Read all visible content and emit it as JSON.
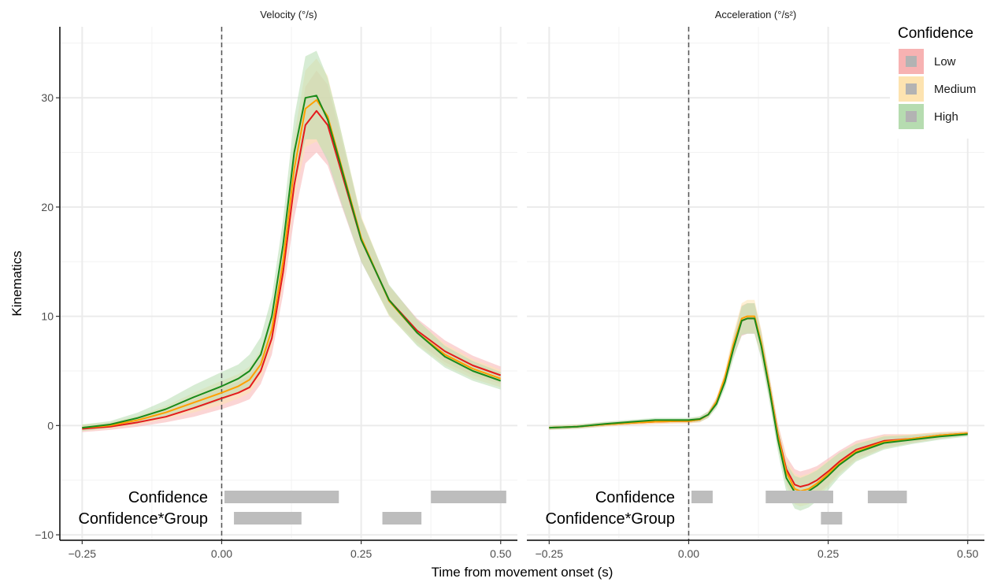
{
  "chart_data": {
    "type": "line",
    "xlabel": "Time from movement onset (s)",
    "ylabel": "Kinematics",
    "legend": {
      "title": "Confidence",
      "placement": "top-right",
      "entries": [
        {
          "name": "Low",
          "color": "#e41a1c",
          "fill": "#f7b2b2"
        },
        {
          "name": "Medium",
          "color": "#ff9f00",
          "fill": "#fde3b0"
        },
        {
          "name": "High",
          "color": "#1a8a1a",
          "fill": "#b6dcb0"
        }
      ]
    },
    "xlim": [
      -0.29,
      0.53
    ],
    "ylim": [
      -10.5,
      36.5
    ],
    "x_ticks": [
      -0.25,
      0.0,
      0.25,
      0.5
    ],
    "x_tick_labels": [
      "-0.25",
      "0.00",
      "0.25",
      "0.50"
    ],
    "y_ticks": [
      -10,
      0,
      10,
      20,
      30
    ],
    "y_tick_labels": [
      "-10",
      "0",
      "10",
      "20",
      "30"
    ],
    "grid": true,
    "vline_x": 0.0,
    "panels": [
      {
        "strip_label": "Velocity (°/s)",
        "x": [
          -0.25,
          -0.2,
          -0.15,
          -0.1,
          -0.05,
          0.0,
          0.03,
          0.05,
          0.07,
          0.09,
          0.11,
          0.13,
          0.15,
          0.17,
          0.19,
          0.21,
          0.25,
          0.3,
          0.35,
          0.4,
          0.45,
          0.5
        ],
        "series": [
          {
            "name": "Low",
            "values": [
              -0.3,
              -0.1,
              0.3,
              0.8,
              1.6,
              2.5,
              3.0,
              3.5,
              5.0,
              8.0,
              14.0,
              22.0,
              27.5,
              28.8,
              27.5,
              24.0,
              17.0,
              11.5,
              8.7,
              6.8,
              5.5,
              4.6
            ],
            "lower": [
              -0.6,
              -0.4,
              -0.1,
              0.3,
              0.8,
              1.5,
              2.0,
              2.4,
              3.8,
              6.5,
              12.0,
              19.0,
              24.0,
              25.0,
              23.8,
              20.8,
              15.0,
              10.2,
              7.6,
              5.8,
              4.6,
              3.8
            ],
            "upper": [
              0.0,
              0.2,
              0.7,
              1.4,
              2.4,
              3.5,
              4.0,
              4.6,
              6.2,
              9.5,
              16.0,
              25.0,
              31.0,
              32.5,
              31.2,
              27.2,
              19.0,
              12.8,
              9.8,
              7.8,
              6.4,
              5.4
            ]
          },
          {
            "name": "Medium",
            "values": [
              -0.2,
              0.0,
              0.5,
              1.2,
              2.1,
              3.0,
              3.6,
              4.2,
              5.6,
              8.8,
              15.0,
              23.5,
              29.0,
              29.8,
              28.3,
              24.6,
              17.2,
              11.4,
              8.5,
              6.5,
              5.2,
              4.3
            ],
            "lower": [
              -0.5,
              -0.3,
              0.1,
              0.6,
              1.2,
              1.9,
              2.5,
              3.0,
              4.3,
              7.2,
              13.0,
              20.5,
              25.5,
              26.0,
              24.6,
              21.4,
              15.2,
              10.0,
              7.4,
              5.5,
              4.3,
              3.5
            ],
            "upper": [
              0.1,
              0.3,
              0.9,
              1.8,
              3.0,
              4.1,
              4.7,
              5.4,
              6.9,
              10.4,
              17.0,
              26.5,
              32.5,
              33.6,
              32.0,
              27.8,
              19.2,
              12.8,
              9.6,
              7.5,
              6.1,
              5.1
            ]
          },
          {
            "name": "High",
            "values": [
              -0.2,
              0.1,
              0.7,
              1.5,
              2.6,
              3.6,
              4.3,
              5.0,
              6.5,
              10.0,
              16.5,
              25.0,
              30.0,
              30.2,
              28.0,
              24.4,
              17.0,
              11.5,
              8.5,
              6.3,
              5.0,
              4.1
            ],
            "lower": [
              -0.5,
              -0.2,
              0.2,
              0.8,
              1.5,
              2.3,
              3.0,
              3.5,
              4.9,
              8.2,
              14.2,
              21.8,
              26.2,
              26.2,
              24.2,
              21.0,
              15.0,
              10.1,
              7.3,
              5.3,
              4.1,
              3.3
            ],
            "upper": [
              0.1,
              0.4,
              1.2,
              2.3,
              3.7,
              4.9,
              5.6,
              6.5,
              8.1,
              11.8,
              18.8,
              28.2,
              33.8,
              34.3,
              31.8,
              27.8,
              19.0,
              12.9,
              9.7,
              7.3,
              5.9,
              4.9
            ]
          }
        ],
        "significance": [
          {
            "label": "Confidence",
            "intervals": [
              [
                0.005,
                0.21
              ],
              [
                0.375,
                0.51
              ]
            ]
          },
          {
            "label": "Confidence*Group",
            "intervals": [
              [
                0.022,
                0.143
              ],
              [
                0.288,
                0.358
              ]
            ]
          }
        ]
      },
      {
        "strip_label": "Acceleration (°/s²)",
        "x": [
          -0.25,
          -0.2,
          -0.15,
          -0.1,
          -0.06,
          -0.02,
          0.0,
          0.02,
          0.035,
          0.05,
          0.065,
          0.08,
          0.095,
          0.105,
          0.118,
          0.13,
          0.145,
          0.16,
          0.175,
          0.19,
          0.2,
          0.215,
          0.23,
          0.25,
          0.27,
          0.3,
          0.35,
          0.4,
          0.45,
          0.5
        ],
        "series": [
          {
            "name": "Low",
            "values": [
              -0.2,
              -0.1,
              0.1,
              0.25,
              0.35,
              0.4,
              0.4,
              0.55,
              1.0,
              2.2,
              4.3,
              7.2,
              9.6,
              9.8,
              9.8,
              7.5,
              3.5,
              -0.8,
              -4.0,
              -5.4,
              -5.6,
              -5.4,
              -5.0,
              -4.2,
              -3.3,
              -2.2,
              -1.4,
              -1.2,
              -0.9,
              -0.7
            ],
            "lower": [
              -0.4,
              -0.3,
              -0.1,
              0.05,
              0.15,
              0.2,
              0.2,
              0.3,
              0.7,
              1.8,
              3.8,
              6.3,
              8.2,
              8.4,
              8.4,
              6.3,
              2.5,
              -1.8,
              -5.2,
              -6.8,
              -7.0,
              -6.8,
              -6.3,
              -5.4,
              -4.3,
              -3.0,
              -2.0,
              -1.6,
              -1.2,
              -0.9
            ],
            "upper": [
              0.0,
              0.1,
              0.3,
              0.45,
              0.55,
              0.6,
              0.6,
              0.8,
              1.3,
              2.6,
              4.8,
              8.1,
              11.0,
              11.2,
              11.2,
              8.7,
              4.5,
              0.2,
              -2.8,
              -4.0,
              -4.2,
              -4.0,
              -3.7,
              -3.0,
              -2.3,
              -1.4,
              -0.8,
              -0.8,
              -0.6,
              -0.5
            ]
          },
          {
            "name": "Medium",
            "values": [
              -0.2,
              -0.1,
              0.1,
              0.25,
              0.35,
              0.4,
              0.4,
              0.55,
              1.0,
              2.2,
              4.4,
              7.4,
              9.8,
              10.0,
              10.0,
              7.6,
              3.5,
              -0.9,
              -4.3,
              -5.8,
              -6.0,
              -5.8,
              -5.3,
              -4.4,
              -3.5,
              -2.4,
              -1.5,
              -1.2,
              -0.9,
              -0.7
            ],
            "lower": [
              -0.4,
              -0.3,
              -0.1,
              0.05,
              0.15,
              0.2,
              0.2,
              0.3,
              0.7,
              1.8,
              3.8,
              6.4,
              8.4,
              8.5,
              8.5,
              6.4,
              2.5,
              -1.9,
              -5.5,
              -7.2,
              -7.4,
              -7.2,
              -6.6,
              -5.6,
              -4.5,
              -3.2,
              -2.1,
              -1.6,
              -1.2,
              -0.9
            ],
            "upper": [
              0.0,
              0.1,
              0.3,
              0.45,
              0.55,
              0.6,
              0.6,
              0.8,
              1.3,
              2.6,
              5.0,
              8.4,
              11.2,
              11.5,
              11.5,
              8.8,
              4.5,
              0.1,
              -3.1,
              -4.4,
              -4.6,
              -4.4,
              -4.0,
              -3.2,
              -2.5,
              -1.6,
              -0.9,
              -0.8,
              -0.6,
              -0.5
            ]
          },
          {
            "name": "High",
            "values": [
              -0.2,
              -0.1,
              0.15,
              0.35,
              0.5,
              0.5,
              0.5,
              0.6,
              1.0,
              2.0,
              4.0,
              7.0,
              9.6,
              9.8,
              9.8,
              7.3,
              3.2,
              -1.3,
              -4.8,
              -6.1,
              -6.3,
              -6.0,
              -5.5,
              -4.6,
              -3.6,
              -2.5,
              -1.6,
              -1.3,
              -1.0,
              -0.8
            ],
            "lower": [
              -0.4,
              -0.3,
              -0.05,
              0.15,
              0.3,
              0.3,
              0.3,
              0.35,
              0.7,
              1.6,
              3.4,
              6.1,
              8.3,
              8.4,
              8.4,
              6.1,
              2.1,
              -2.4,
              -6.1,
              -7.6,
              -7.8,
              -7.5,
              -6.9,
              -5.9,
              -4.7,
              -3.3,
              -2.2,
              -1.7,
              -1.3,
              -1.0
            ],
            "upper": [
              0.0,
              0.1,
              0.35,
              0.55,
              0.7,
              0.7,
              0.7,
              0.85,
              1.3,
              2.4,
              4.6,
              7.9,
              10.9,
              11.2,
              11.2,
              8.5,
              4.3,
              -0.2,
              -3.5,
              -4.6,
              -4.8,
              -4.5,
              -4.1,
              -3.3,
              -2.5,
              -1.7,
              -1.0,
              -0.9,
              -0.7,
              -0.6
            ]
          }
        ],
        "significance": [
          {
            "label": "Confidence",
            "intervals": [
              [
                0.005,
                0.043
              ],
              [
                0.138,
                0.259
              ],
              [
                0.321,
                0.391
              ]
            ]
          },
          {
            "label": "Confidence*Group",
            "intervals": [
              [
                0.237,
                0.275
              ]
            ]
          }
        ]
      }
    ]
  }
}
